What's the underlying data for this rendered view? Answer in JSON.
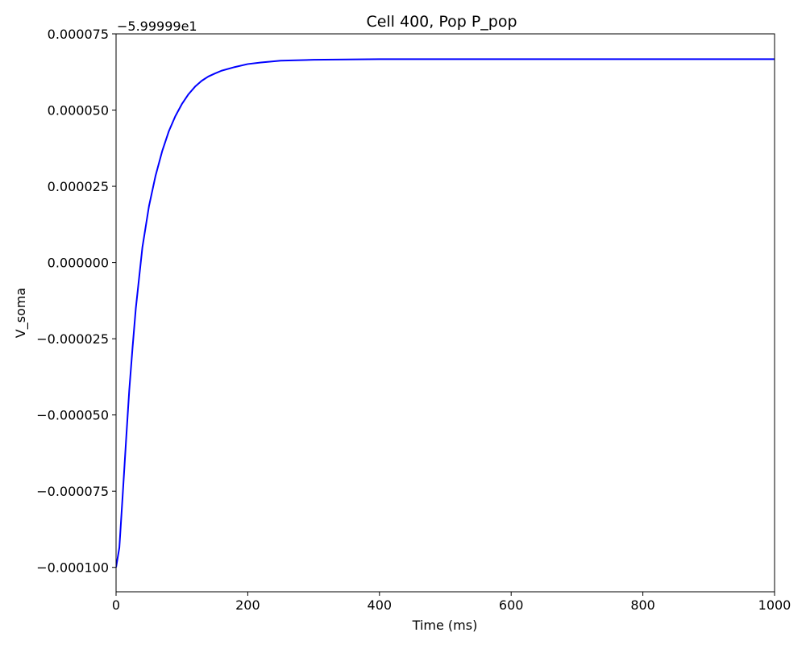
{
  "chart_data": {
    "type": "line",
    "title": "Cell 400, Pop P_pop",
    "xlabel": "Time (ms)",
    "ylabel": "V_soma",
    "y_offset_label": "−5.99999e1",
    "xlim": [
      0,
      1000
    ],
    "ylim": [
      -0.000108,
      7.5e-05
    ],
    "x_ticks": [
      0,
      200,
      400,
      600,
      800,
      1000
    ],
    "x_tick_labels": [
      "0",
      "200",
      "400",
      "600",
      "800",
      "1000"
    ],
    "y_ticks": [
      -0.0001,
      -7.5e-05,
      -5e-05,
      -2.5e-05,
      0,
      2.5e-05,
      5e-05,
      7.5e-05
    ],
    "y_tick_labels": [
      "−0.000100",
      "−0.000075",
      "−0.000050",
      "−0.000025",
      "0.000000",
      "0.000025",
      "0.000050",
      "0.000075"
    ],
    "grid": false,
    "series": [
      {
        "color": "#0000ff",
        "x": [
          0,
          5,
          10,
          15,
          20,
          25,
          30,
          40,
          50,
          60,
          70,
          80,
          90,
          100,
          110,
          120,
          130,
          140,
          150,
          160,
          180,
          200,
          220,
          250,
          300,
          350,
          400,
          500,
          600,
          700,
          800,
          900,
          1000
        ],
        "y": [
          -0.0001,
          -9.35e-05,
          -7.65e-05,
          -5.9e-05,
          -4.2e-05,
          -2.8e-05,
          -1.5e-05,
          5e-06,
          1.85e-05,
          2.85e-05,
          3.65e-05,
          4.3e-05,
          4.8e-05,
          5.2e-05,
          5.52e-05,
          5.77e-05,
          5.96e-05,
          6.1e-05,
          6.2e-05,
          6.29e-05,
          6.41e-05,
          6.51e-05,
          6.56e-05,
          6.62e-05,
          6.65e-05,
          6.66e-05,
          6.67e-05,
          6.67e-05,
          6.67e-05,
          6.67e-05,
          6.67e-05,
          6.67e-05,
          6.67e-05
        ]
      }
    ]
  }
}
